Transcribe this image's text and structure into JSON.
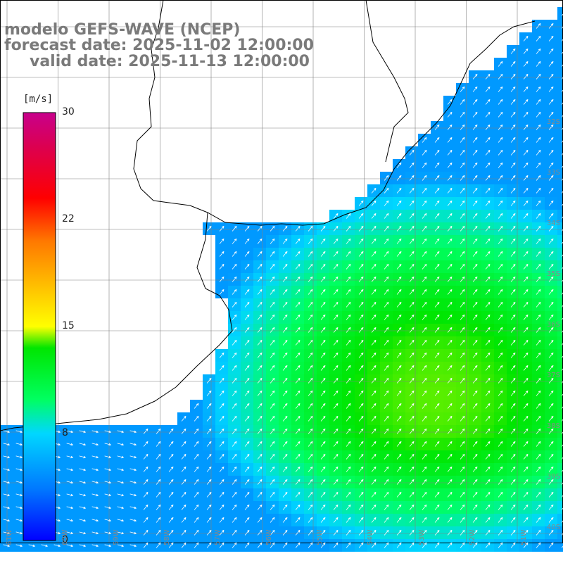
{
  "header": {
    "model": "modelo GEFS-WAVE (NCEP)",
    "forecast": "forecast date: 2025-11-02 12:00:00",
    "valid": "valid date: 2025-11-13 12:00:00"
  },
  "colorbar": {
    "unit": "[m/s]",
    "min": 0,
    "max": 30,
    "ticks": [
      "30",
      "22",
      "15",
      "8",
      "0"
    ],
    "tick_values": [
      30,
      22,
      15,
      8,
      0
    ],
    "colors": [
      "#0000ff",
      "#0078ff",
      "#00d7ff",
      "#00ff60",
      "#00e600",
      "#ffff00",
      "#ff7800",
      "#ff0000",
      "#dc0050",
      "#c8008c"
    ]
  },
  "map": {
    "lat_labels": [
      "32S",
      "33S",
      "34S",
      "35S",
      "36S",
      "37S",
      "38S",
      "39S",
      "40S"
    ],
    "lon_labels": [
      "61W",
      "60W",
      "59W",
      "58W",
      "57W",
      "56W",
      "55W",
      "54W",
      "53W",
      "52W",
      "51W"
    ],
    "land_color": "#ffffff",
    "coast_color": "#000000",
    "grid_color": "#808080",
    "arrow_color": "#ffffff"
  }
}
